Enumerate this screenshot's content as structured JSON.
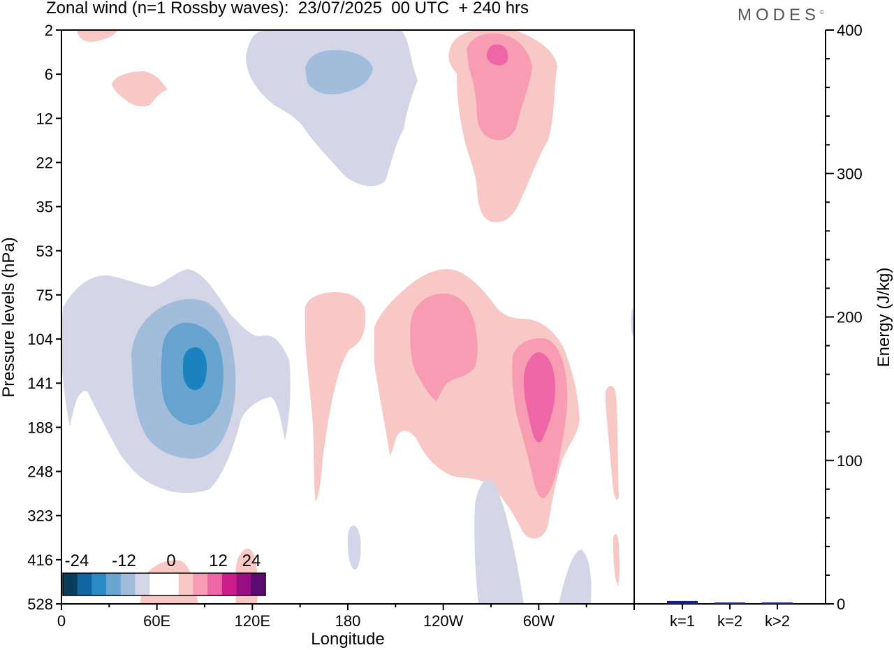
{
  "header": {
    "title": "Zonal wind (n=1 Rossby waves):  23/07/2025  00 UTC  + 240 hrs",
    "brand": "MODES",
    "brand_mark": "©"
  },
  "chart_data": [
    {
      "type": "contour",
      "title": "Zonal wind (n=1 Rossby waves):  23/07/2025  00 UTC  + 240 hrs",
      "xlabel": "Longitude",
      "ylabel": "Pressure levels (hPa)",
      "x_ticks": [
        "0",
        "60E",
        "120E",
        "180",
        "120W",
        "60W"
      ],
      "x_tick_values": [
        0,
        60,
        120,
        180,
        240,
        300
      ],
      "xlim": [
        0,
        360
      ],
      "y_ticks": [
        "2",
        "6",
        "12",
        "22",
        "35",
        "53",
        "75",
        "104",
        "141",
        "188",
        "248",
        "323",
        "416",
        "528"
      ],
      "colorbar": {
        "labels": [
          "-24",
          "-12",
          "0",
          "12",
          "24"
        ],
        "colors": [
          "#0a3d5c",
          "#0f66a0",
          "#2a8ac4",
          "#6aa6d2",
          "#a2bcdc",
          "#d4d6e8",
          "#ffffff",
          "#ffffff",
          "#f8c8c6",
          "#f79cb3",
          "#ef66a6",
          "#cc1d8d",
          "#970f82",
          "#5b0a6f"
        ]
      },
      "regions": [
        {
          "name": "neg-strat-upper-plume",
          "level": -4
        },
        {
          "name": "neg-strat-upper-core",
          "level": -8
        },
        {
          "name": "pos-strat-upper-plume",
          "level": 4
        },
        {
          "name": "pos-strat-upper-core",
          "level": 8
        },
        {
          "name": "pos-strat-upper-peak",
          "level": 12
        },
        {
          "name": "neg-tropo-60e-plume",
          "level": -4
        },
        {
          "name": "neg-tropo-60e-core",
          "level": -8
        },
        {
          "name": "neg-tropo-60e-inner",
          "level": -12
        },
        {
          "name": "neg-tropo-60e-peak",
          "level": -16
        },
        {
          "name": "pos-tropo-180-blob",
          "level": 4
        },
        {
          "name": "pos-tropo-130w-blob",
          "level": 4
        },
        {
          "name": "pos-tropo-130w-core",
          "level": 8
        },
        {
          "name": "pos-tropo-60w-core",
          "level": 8
        },
        {
          "name": "pos-tropo-60w-peak",
          "level": 12
        }
      ]
    },
    {
      "type": "bar",
      "ylabel": "Energy (J/kg)",
      "categories": [
        "k=1",
        "k=2",
        "k>2"
      ],
      "values": [
        2,
        0.5,
        1
      ],
      "ylim": [
        0,
        400
      ],
      "y_ticks": [
        "0",
        "100",
        "200",
        "300",
        "400"
      ],
      "colors": {
        "bar": "#1a1a8c"
      }
    }
  ]
}
